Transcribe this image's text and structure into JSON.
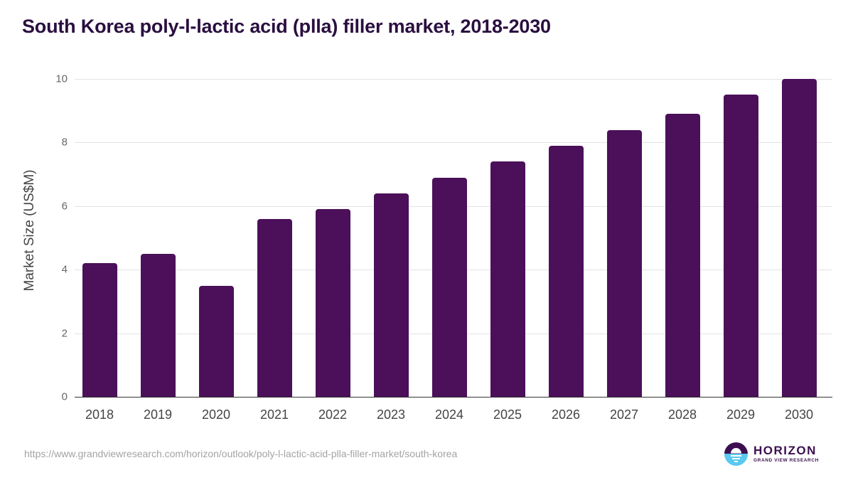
{
  "header": {
    "title": "South Korea poly-l-lactic acid (plla) filler market, 2018-2030"
  },
  "footer": {
    "source_url": "https://www.grandviewresearch.com/horizon/outlook/poly-l-lactic-acid-plla-filler-market/south-korea",
    "logo_name": "HORIZON",
    "logo_subtitle": "GRAND VIEW RESEARCH"
  },
  "colors": {
    "bar": "#4b1059",
    "title": "#2a0f3f",
    "logo_dark": "#3b0f4f",
    "logo_light": "#5bc8f0"
  },
  "chart_data": {
    "type": "bar",
    "title": "South Korea poly-l-lactic acid (plla) filler market, 2018-2030",
    "xlabel": "",
    "ylabel": "Market Size (US$M)",
    "ylim": [
      0,
      10
    ],
    "yticks": [
      0,
      2,
      4,
      6,
      8,
      10
    ],
    "grid": true,
    "legend": null,
    "categories": [
      "2018",
      "2019",
      "2020",
      "2021",
      "2022",
      "2023",
      "2024",
      "2025",
      "2026",
      "2027",
      "2028",
      "2029",
      "2030"
    ],
    "values": [
      4.2,
      4.5,
      3.5,
      5.6,
      5.9,
      6.4,
      6.9,
      7.4,
      7.9,
      8.4,
      8.9,
      9.5,
      10.0
    ]
  }
}
